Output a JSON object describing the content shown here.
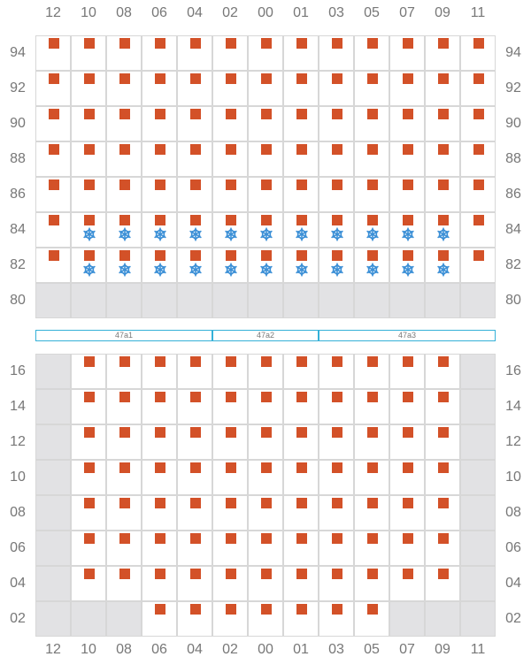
{
  "columns": [
    "12",
    "10",
    "08",
    "06",
    "04",
    "02",
    "00",
    "01",
    "03",
    "05",
    "07",
    "09",
    "11"
  ],
  "upper": {
    "rows": [
      "94",
      "92",
      "90",
      "88",
      "86",
      "84",
      "82",
      "80"
    ],
    "filled_row_codes": [
      "94",
      "92",
      "90",
      "88",
      "86",
      "84",
      "82"
    ],
    "gray_row_codes": [
      "80"
    ],
    "snow_row_codes": [
      "84",
      "82"
    ],
    "snow_columns": [
      "10",
      "08",
      "06",
      "04",
      "02",
      "00",
      "01",
      "03",
      "05",
      "07",
      "09"
    ]
  },
  "lower": {
    "rows": [
      "16",
      "14",
      "12",
      "10",
      "08",
      "06",
      "04",
      "02"
    ],
    "gray_columns": [
      "12",
      "11"
    ],
    "row_02_gray_columns": [
      "12",
      "10",
      "08",
      "07",
      "09",
      "11"
    ],
    "row_02_marker_columns": [
      "06",
      "04",
      "02",
      "00",
      "01",
      "03",
      "05"
    ]
  },
  "zones": [
    {
      "label": "47a1",
      "columns": [
        "12",
        "10",
        "08",
        "06",
        "04"
      ]
    },
    {
      "label": "47a2",
      "columns": [
        "02",
        "00",
        "01"
      ]
    },
    {
      "label": "47a3",
      "columns": [
        "03",
        "05",
        "07",
        "09",
        "11"
      ]
    }
  ],
  "colors": {
    "marker": "#d35128",
    "snow": "#3b8fd6",
    "zone_border": "#35b1d8",
    "unavailable": "#e2e2e4"
  },
  "icons": {
    "marker": "square",
    "cold": "snowflake-icon"
  }
}
